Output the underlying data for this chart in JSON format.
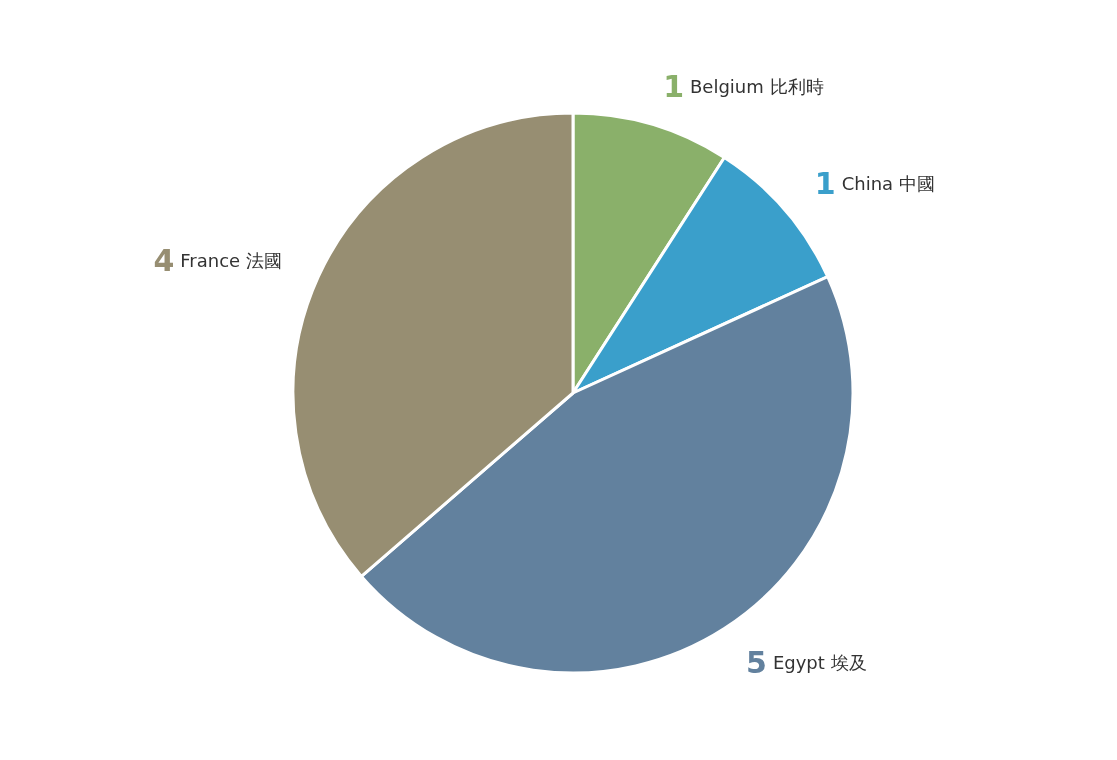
{
  "chart_data": {
    "type": "pie",
    "categories": [
      "Belgium 比利時",
      "China 中國",
      "Egypt 埃及",
      "France 法國"
    ],
    "values": [
      1,
      1,
      5,
      4
    ],
    "colors": [
      "#8ab06a",
      "#3a9fcb",
      "#62819e",
      "#978e72"
    ],
    "data_labels": true,
    "legend": false
  }
}
